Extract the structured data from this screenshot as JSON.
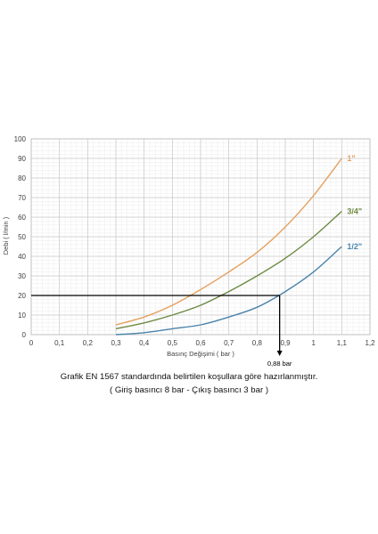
{
  "chart_data": {
    "type": "line",
    "xlabel": "Basınç Değişimi ( bar )",
    "ylabel": "Debi ( l/min )",
    "xlim": [
      0,
      1.2
    ],
    "ylim": [
      0,
      100
    ],
    "x_ticks": [
      "0",
      "0,1",
      "0,2",
      "0,3",
      "0,4",
      "0,5",
      "0,6",
      "0,7",
      "0,8",
      "0,9",
      "1",
      "1,1",
      "1,2"
    ],
    "y_ticks": [
      "0",
      "10",
      "20",
      "30",
      "40",
      "50",
      "60",
      "70",
      "80",
      "90",
      "100"
    ],
    "grid": true,
    "series": [
      {
        "name": "1\"",
        "color": "#e5a15f",
        "x": [
          0.3,
          0.4,
          0.5,
          0.6,
          0.7,
          0.8,
          0.9,
          1.0,
          1.1
        ],
        "y": [
          5,
          9,
          15,
          23,
          32,
          42,
          55,
          71,
          90
        ]
      },
      {
        "name": "3/4\"",
        "color": "#6e8a43",
        "x": [
          0.3,
          0.4,
          0.5,
          0.6,
          0.7,
          0.8,
          0.9,
          1.0,
          1.1
        ],
        "y": [
          3,
          6,
          10,
          15,
          22,
          30,
          39,
          50,
          63
        ]
      },
      {
        "name": "1/2\"",
        "color": "#4a84ab",
        "x": [
          0.3,
          0.4,
          0.5,
          0.6,
          0.7,
          0.8,
          0.9,
          1.0,
          1.1
        ],
        "y": [
          0,
          1,
          3,
          5,
          9,
          14,
          22,
          32,
          45
        ]
      }
    ],
    "annotation": {
      "x": 0.88,
      "y": 20,
      "label": "0,88 bar"
    }
  },
  "caption": {
    "line1": "Grafik EN 1567 standardında belirtilen koşullara göre hazırlanmıştır.",
    "line2": "( Giriş basıncı 8 bar - Çıkış basıncı 3 bar )"
  }
}
